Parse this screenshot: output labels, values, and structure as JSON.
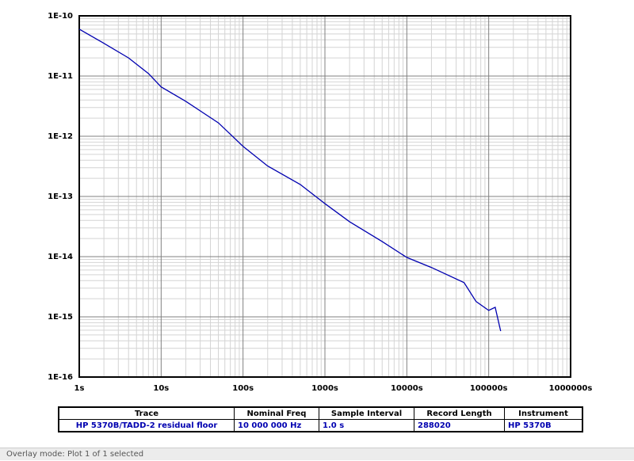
{
  "chart_data": {
    "type": "line",
    "log_x": true,
    "log_y": true,
    "grid": true,
    "minor_grid": true,
    "x": [
      1,
      2,
      4,
      7,
      10,
      20,
      50,
      100,
      200,
      500,
      1000,
      2000,
      5000,
      10000,
      20000,
      50000,
      70000,
      100000,
      120000,
      140000
    ],
    "series": [
      {
        "color": "#0000b0",
        "values": [
          6e-11,
          3.5e-11,
          2e-11,
          1.1e-11,
          6.6e-12,
          3.8e-12,
          1.67e-12,
          6.8e-13,
          3.2e-13,
          1.58e-13,
          7.6e-14,
          3.8e-14,
          1.78e-14,
          9.7e-15,
          6.6e-15,
          3.7e-15,
          1.8e-15,
          1.28e-15,
          1.44e-15,
          5.8e-16
        ]
      }
    ],
    "xlim": [
      1,
      1000000
    ],
    "xticks": [
      {
        "value": 1,
        "label": "1s"
      },
      {
        "value": 10,
        "label": "10s"
      },
      {
        "value": 100,
        "label": "100s"
      },
      {
        "value": 1000,
        "label": "1000s"
      },
      {
        "value": 10000,
        "label": "10000s"
      },
      {
        "value": 100000,
        "label": "100000s"
      },
      {
        "value": 1000000,
        "label": "1000000s"
      }
    ],
    "ylim": [
      1e-16,
      1e-10
    ],
    "yticks": [
      {
        "value": 1e-16,
        "label": "1E-16"
      },
      {
        "value": 1e-15,
        "label": "1E-15"
      },
      {
        "value": 1e-14,
        "label": "1E-14"
      },
      {
        "value": 1e-13,
        "label": "1E-13"
      },
      {
        "value": 1e-12,
        "label": "1E-12"
      },
      {
        "value": 1e-11,
        "label": "1E-11"
      },
      {
        "value": 1e-10,
        "label": "1E-10"
      }
    ]
  },
  "table": {
    "header": [
      "Trace",
      "Nominal Freq",
      "Sample Interval",
      "Record Length",
      "Instrument"
    ],
    "rows": [
      [
        "HP 5370B/TADD-2 residual floor",
        "10 000 000 Hz",
        "1.0 s",
        "288020",
        "HP 5370B"
      ]
    ]
  },
  "status": "Overlay mode: Plot 1 of 1 selected"
}
